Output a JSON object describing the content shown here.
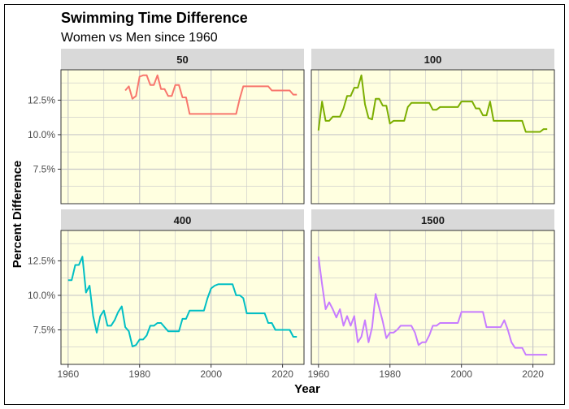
{
  "title": "Swimming Time Difference",
  "subtitle": "Women vs Men since 1960",
  "colors": {
    "panel_bg": "#ffffe0",
    "strip_bg": "#d9d9d9",
    "grid": "#c8c8c8",
    "frame": "#333333"
  },
  "chart_data": {
    "type": "line",
    "xlabel": "Year",
    "ylabel": "Percent Difference",
    "xlim": [
      1958,
      2026
    ],
    "ylim": [
      0.05,
      0.147
    ],
    "x_ticks": [
      1960,
      1980,
      2000,
      2020
    ],
    "x_tick_labels": [
      "1960",
      "1980",
      "2000",
      "2020"
    ],
    "y_ticks": [
      0.075,
      0.1,
      0.125
    ],
    "y_tick_labels": [
      "7.5%",
      "10.0%",
      "12.5%"
    ],
    "grid": true,
    "legend": "none",
    "panels": [
      {
        "name": "50",
        "color": "#f8766d",
        "x": [
          1976,
          1977,
          1978,
          1979,
          1980,
          1981,
          1982,
          1983,
          1984,
          1985,
          1986,
          1987,
          1988,
          1989,
          1990,
          1991,
          1992,
          1993,
          1994,
          2000,
          2004,
          2007,
          2008,
          2009,
          2012,
          2016,
          2017,
          2020,
          2022,
          2023,
          2024
        ],
        "y": [
          0.132,
          0.135,
          0.126,
          0.128,
          0.142,
          0.143,
          0.143,
          0.136,
          0.136,
          0.143,
          0.133,
          0.133,
          0.128,
          0.128,
          0.136,
          0.136,
          0.127,
          0.127,
          0.115,
          0.115,
          0.115,
          0.115,
          0.126,
          0.135,
          0.135,
          0.135,
          0.132,
          0.132,
          0.132,
          0.129,
          0.129
        ]
      },
      {
        "name": "100",
        "color": "#7cae00",
        "x": [
          1960,
          1961,
          1962,
          1963,
          1964,
          1965,
          1966,
          1967,
          1968,
          1969,
          1970,
          1971,
          1972,
          1973,
          1974,
          1975,
          1976,
          1977,
          1978,
          1979,
          1980,
          1981,
          1982,
          1983,
          1984,
          1985,
          1986,
          1987,
          1988,
          1989,
          1990,
          1991,
          1992,
          1993,
          1994,
          1995,
          1996,
          1997,
          1998,
          1999,
          2000,
          2001,
          2002,
          2003,
          2004,
          2005,
          2006,
          2007,
          2008,
          2009,
          2010,
          2011,
          2012,
          2013,
          2014,
          2015,
          2016,
          2017,
          2018,
          2019,
          2020,
          2021,
          2022,
          2023,
          2024
        ],
        "y": [
          0.103,
          0.124,
          0.11,
          0.11,
          0.113,
          0.113,
          0.113,
          0.119,
          0.128,
          0.128,
          0.134,
          0.134,
          0.143,
          0.122,
          0.112,
          0.111,
          0.126,
          0.126,
          0.121,
          0.121,
          0.108,
          0.11,
          0.11,
          0.11,
          0.11,
          0.12,
          0.123,
          0.123,
          0.123,
          0.123,
          0.123,
          0.123,
          0.118,
          0.118,
          0.12,
          0.12,
          0.12,
          0.12,
          0.12,
          0.12,
          0.124,
          0.124,
          0.124,
          0.124,
          0.119,
          0.119,
          0.114,
          0.114,
          0.124,
          0.11,
          0.11,
          0.11,
          0.11,
          0.11,
          0.11,
          0.11,
          0.11,
          0.11,
          0.102,
          0.102,
          0.102,
          0.102,
          0.102,
          0.104,
          0.104
        ]
      },
      {
        "name": "400",
        "color": "#00bfc4",
        "x": [
          1960,
          1961,
          1962,
          1963,
          1964,
          1965,
          1966,
          1967,
          1968,
          1969,
          1970,
          1971,
          1972,
          1973,
          1974,
          1975,
          1976,
          1977,
          1978,
          1979,
          1980,
          1981,
          1982,
          1983,
          1984,
          1985,
          1986,
          1987,
          1988,
          1989,
          1990,
          1991,
          1992,
          1993,
          1994,
          1995,
          1996,
          1997,
          1998,
          1999,
          2000,
          2001,
          2002,
          2003,
          2004,
          2005,
          2006,
          2007,
          2008,
          2009,
          2010,
          2011,
          2012,
          2013,
          2014,
          2015,
          2016,
          2017,
          2018,
          2019,
          2020,
          2021,
          2022,
          2023,
          2024
        ],
        "y": [
          0.111,
          0.111,
          0.122,
          0.122,
          0.128,
          0.102,
          0.107,
          0.085,
          0.073,
          0.085,
          0.089,
          0.078,
          0.078,
          0.082,
          0.088,
          0.092,
          0.077,
          0.074,
          0.063,
          0.064,
          0.068,
          0.068,
          0.071,
          0.078,
          0.078,
          0.08,
          0.08,
          0.077,
          0.074,
          0.074,
          0.074,
          0.074,
          0.083,
          0.083,
          0.089,
          0.089,
          0.089,
          0.089,
          0.089,
          0.098,
          0.105,
          0.107,
          0.108,
          0.108,
          0.108,
          0.108,
          0.108,
          0.1,
          0.1,
          0.098,
          0.087,
          0.087,
          0.087,
          0.087,
          0.087,
          0.087,
          0.08,
          0.08,
          0.075,
          0.075,
          0.075,
          0.075,
          0.075,
          0.07,
          0.07
        ]
      },
      {
        "name": "1500",
        "color": "#c77cff",
        "x": [
          1960,
          1961,
          1962,
          1963,
          1964,
          1965,
          1966,
          1967,
          1968,
          1969,
          1970,
          1971,
          1972,
          1973,
          1974,
          1975,
          1976,
          1977,
          1978,
          1979,
          1980,
          1981,
          1982,
          1983,
          1984,
          1985,
          1986,
          1987,
          1988,
          1989,
          1990,
          1991,
          1992,
          1993,
          1994,
          1995,
          1996,
          1997,
          1998,
          1999,
          2000,
          2001,
          2002,
          2003,
          2004,
          2005,
          2006,
          2007,
          2008,
          2009,
          2010,
          2011,
          2012,
          2013,
          2014,
          2015,
          2016,
          2017,
          2018,
          2019,
          2020,
          2021,
          2022,
          2023,
          2024
        ],
        "y": [
          0.128,
          0.108,
          0.09,
          0.095,
          0.09,
          0.084,
          0.09,
          0.078,
          0.085,
          0.078,
          0.085,
          0.066,
          0.07,
          0.082,
          0.066,
          0.077,
          0.101,
          0.091,
          0.081,
          0.069,
          0.073,
          0.073,
          0.075,
          0.078,
          0.078,
          0.078,
          0.078,
          0.073,
          0.064,
          0.066,
          0.066,
          0.071,
          0.078,
          0.078,
          0.08,
          0.08,
          0.08,
          0.08,
          0.08,
          0.08,
          0.088,
          0.088,
          0.088,
          0.088,
          0.088,
          0.088,
          0.088,
          0.077,
          0.077,
          0.077,
          0.077,
          0.077,
          0.082,
          0.075,
          0.066,
          0.062,
          0.062,
          0.062,
          0.057,
          0.057,
          0.057,
          0.057,
          0.057,
          0.057,
          0.057
        ]
      }
    ]
  }
}
